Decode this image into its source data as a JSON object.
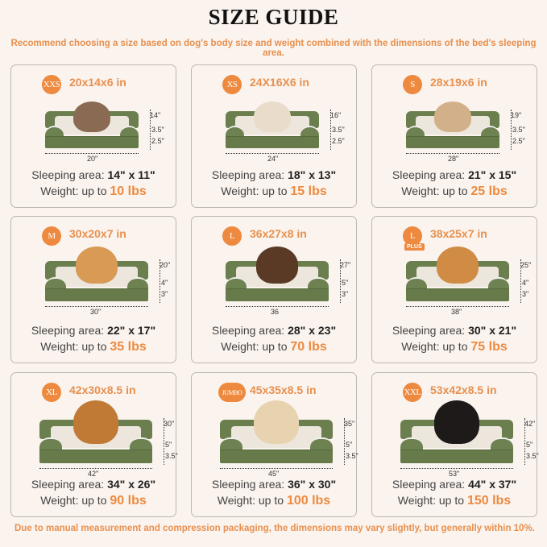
{
  "title": "SIZE GUIDE",
  "subtitle": "Recommend choosing a size based on dog's body size and weight combined with the dimensions of the bed's sleeping area.",
  "footer": "Due to manual measurement and compression packaging, the dimensions may vary slightly, but generally within 10%.",
  "colors": {
    "accent": "#ed8a3f",
    "bed_green": "#6b7e4e",
    "background": "#faf3ee"
  },
  "sizes": [
    {
      "badge": "XXS",
      "dims": "20x14x6 in",
      "width_label": "20\"",
      "height_label": "14\"",
      "top_label": "3.5\"",
      "base_label": "2.5\"",
      "sleep_label": "Sleeping area:",
      "sleep_value": "14\" x 11\"",
      "weight_label": "Weight:  up to",
      "weight_value": "10 lbs",
      "pet": "cat",
      "pet_color": "#8a6a52"
    },
    {
      "badge": "XS",
      "dims": "24X16X6 in",
      "width_label": "24\"",
      "height_label": "16\"",
      "top_label": "3.5\"",
      "base_label": "2.5\"",
      "sleep_label": "Sleeping area:",
      "sleep_value": "18\" x 13\"",
      "weight_label": "Weight: up to",
      "weight_value": "15 lbs",
      "pet": "dog",
      "pet_color": "#e9dccb"
    },
    {
      "badge": "S",
      "dims": "28x19x6 in",
      "width_label": "28\"",
      "height_label": "19\"",
      "top_label": "3.5\"",
      "base_label": "2.5\"",
      "sleep_label": "Sleeping area:",
      "sleep_value": "21\" x 15\"",
      "weight_label": "Weight: up to",
      "weight_value": "25 lbs",
      "pet": "dog",
      "pet_color": "#d2b08a"
    },
    {
      "badge": "M",
      "dims": "30x20x7 in",
      "width_label": "30\"",
      "height_label": "20\"",
      "top_label": "4\"",
      "base_label": "3\"",
      "sleep_label": "Sleeping area:",
      "sleep_value": "22\" x 17\"",
      "weight_label": "Weight: up to",
      "weight_value": "35 lbs",
      "pet": "dog",
      "pet_color": "#d89a55"
    },
    {
      "badge": "L",
      "dims": "36x27x8 in",
      "width_label": "36",
      "height_label": "27\"",
      "top_label": "5\"",
      "base_label": "3\"",
      "sleep_label": "Sleeping area:",
      "sleep_value": "28\" x 23\"",
      "weight_label": "Weight: up to",
      "weight_value": "70 lbs",
      "pet": "dog",
      "pet_color": "#5a3a25"
    },
    {
      "badge": "L",
      "badge_extra": "PLUS",
      "dims": "38x25x7 in",
      "width_label": "38\"",
      "height_label": "25\"",
      "top_label": "4\"",
      "base_label": "3\"",
      "sleep_label": "Sleeping area:",
      "sleep_value": "30\" x 21\"",
      "weight_label": "Weight: up to",
      "weight_value": "75 lbs",
      "pet": "dog",
      "pet_color": "#d08c45"
    },
    {
      "badge": "XL",
      "dims": "42x30x8.5 in",
      "width_label": "42\"",
      "height_label": "30\"",
      "top_label": "5\"",
      "base_label": "3.5\"",
      "sleep_label": "Sleeping area:",
      "sleep_value": "34\" x 26\"",
      "weight_label": "Weight: up to",
      "weight_value": "90 lbs",
      "pet": "dog",
      "pet_color": "#c07a35"
    },
    {
      "badge": "JUMBO",
      "dims": "45x35x8.5 in",
      "width_label": "45\"",
      "height_label": "35\"",
      "top_label": "5\"",
      "base_label": "3.5\"",
      "sleep_label": "Sleeping area:",
      "sleep_value": "36\" x 30\"",
      "weight_label": "Weight: up to",
      "weight_value": "100 lbs",
      "pet": "dog",
      "pet_color": "#e8d3b0"
    },
    {
      "badge": "XXL",
      "dims": "53x42x8.5 in",
      "width_label": "53\"",
      "height_label": "42\"",
      "top_label": "5\"",
      "base_label": "3.5\"",
      "sleep_label": "Sleeping area:",
      "sleep_value": "44\" x 37\"",
      "weight_label": "Weight: up to",
      "weight_value": "150 lbs",
      "pet": "dog",
      "pet_color": "#1e1a1a"
    }
  ]
}
